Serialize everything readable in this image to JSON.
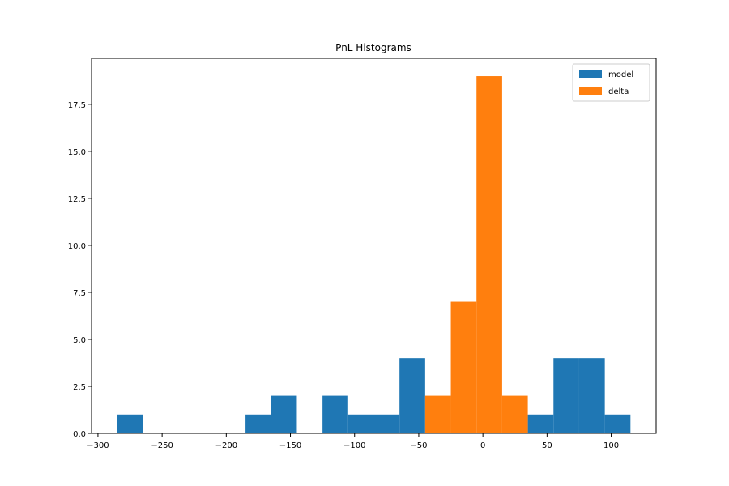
{
  "chart_data": {
    "type": "bar",
    "title": "PnL Histograms",
    "xlabel": "",
    "ylabel": "",
    "xlim": [
      -305,
      135
    ],
    "ylim": [
      0,
      19.95
    ],
    "x_ticks": [
      -300,
      -250,
      -200,
      -150,
      -100,
      -50,
      0,
      50,
      100
    ],
    "x_tick_labels": [
      "−300",
      "−250",
      "−200",
      "−150",
      "−100",
      "−50",
      "0",
      "50",
      "100"
    ],
    "y_ticks": [
      0,
      2.5,
      5,
      7.5,
      10,
      12.5,
      15,
      17.5
    ],
    "y_tick_labels": [
      "0.0",
      "2.5",
      "5.0",
      "7.5",
      "10.0",
      "12.5",
      "15.0",
      "17.5"
    ],
    "legend_position": "top-right",
    "series": [
      {
        "name": "model",
        "color": "#1f77b4",
        "bins": [
          {
            "x0": -285,
            "x1": -265,
            "count": 1
          },
          {
            "x0": -185,
            "x1": -165,
            "count": 1
          },
          {
            "x0": -165,
            "x1": -145,
            "count": 2
          },
          {
            "x0": -125,
            "x1": -105,
            "count": 2
          },
          {
            "x0": -105,
            "x1": -85,
            "count": 1
          },
          {
            "x0": -85,
            "x1": -65,
            "count": 1
          },
          {
            "x0": -65,
            "x1": -45,
            "count": 4
          },
          {
            "x0": 35,
            "x1": 55,
            "count": 1
          },
          {
            "x0": 55,
            "x1": 75,
            "count": 4
          },
          {
            "x0": 75,
            "x1": 95,
            "count": 4
          },
          {
            "x0": 95,
            "x1": 115,
            "count": 1
          }
        ]
      },
      {
        "name": "delta",
        "color": "#ff7f0e",
        "bins": [
          {
            "x0": -45,
            "x1": -25,
            "count": 2
          },
          {
            "x0": -25,
            "x1": -5,
            "count": 7
          },
          {
            "x0": -5,
            "x1": 15,
            "count": 19
          },
          {
            "x0": 15,
            "x1": 35,
            "count": 2
          }
        ]
      }
    ]
  }
}
